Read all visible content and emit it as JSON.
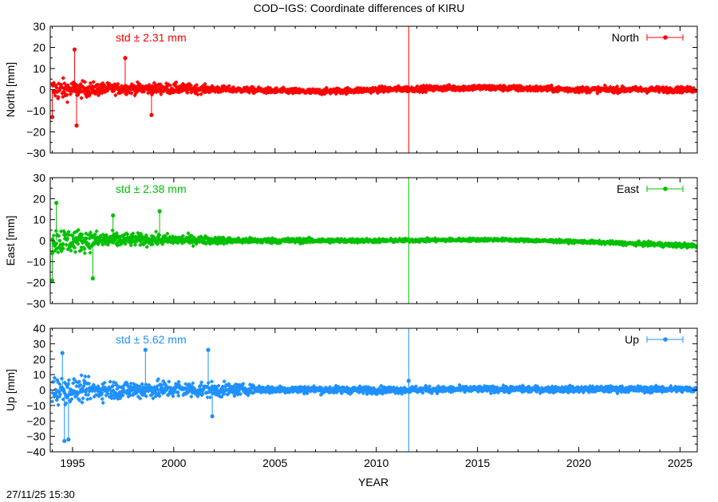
{
  "figure": {
    "title": "COD−IGS: Coordinate differences of KIRU",
    "timestamp": "27/11/25 15:30"
  },
  "chart_data": [
    {
      "type": "scatter",
      "component": "north",
      "series": [
        {
          "name": "North"
        }
      ],
      "ylabel": "North [mm]",
      "xlabel": "",
      "std_label": "std ± 2.31 mm",
      "std_mm": 2.31,
      "color": "#ff0000",
      "xlim": [
        1993.9,
        2025.85
      ],
      "ylim": [
        -30,
        30
      ],
      "yticks": [
        -30,
        -20,
        -10,
        0,
        10,
        20,
        30
      ],
      "xticks": [
        1995,
        2000,
        2005,
        2010,
        2015,
        2020,
        2025
      ],
      "show_xtick_labels": false,
      "grid": false,
      "legend": "top-right",
      "spike": {
        "x": 2011.6,
        "y_range": [
          -30,
          30
        ]
      },
      "envelope": [
        {
          "x": 1994.0,
          "lo": -12,
          "hi": 12
        },
        {
          "x": 1995.5,
          "lo": -8,
          "hi": 8
        },
        {
          "x": 1997.0,
          "lo": -5,
          "hi": 6
        },
        {
          "x": 2000.0,
          "lo": -5,
          "hi": 6
        },
        {
          "x": 2003.0,
          "lo": -3,
          "hi": 3
        },
        {
          "x": 2007.0,
          "lo": -4,
          "hi": 2
        },
        {
          "x": 2010.0,
          "lo": -3,
          "hi": 3
        },
        {
          "x": 2015.0,
          "lo": -2,
          "hi": 4
        },
        {
          "x": 2020.0,
          "lo": -3,
          "hi": 3
        },
        {
          "x": 2025.8,
          "lo": -3,
          "hi": 3
        }
      ],
      "outliers": [
        {
          "x": 1995.1,
          "y": 19
        },
        {
          "x": 1995.2,
          "y": -17
        },
        {
          "x": 1997.6,
          "y": 15
        },
        {
          "x": 1998.9,
          "y": -12
        },
        {
          "x": 1994.0,
          "y": -13
        }
      ]
    },
    {
      "type": "scatter",
      "component": "east",
      "series": [
        {
          "name": "East"
        }
      ],
      "ylabel": "East [mm]",
      "xlabel": "",
      "std_label": "std ± 2.38 mm",
      "std_mm": 2.38,
      "color": "#00c000",
      "xlim": [
        1993.9,
        2025.85
      ],
      "ylim": [
        -30,
        30
      ],
      "yticks": [
        -30,
        -20,
        -10,
        0,
        10,
        20,
        30
      ],
      "xticks": [
        1995,
        2000,
        2005,
        2010,
        2015,
        2020,
        2025
      ],
      "show_xtick_labels": false,
      "grid": false,
      "legend": "top-right",
      "spike": {
        "x": 2011.6,
        "y_range": [
          -30,
          30
        ]
      },
      "envelope": [
        {
          "x": 1994.0,
          "lo": -15,
          "hi": 15
        },
        {
          "x": 1996.0,
          "lo": -10,
          "hi": 10
        },
        {
          "x": 1998.0,
          "lo": -6,
          "hi": 7
        },
        {
          "x": 2000.0,
          "lo": -5,
          "hi": 6
        },
        {
          "x": 2003.0,
          "lo": -3,
          "hi": 3
        },
        {
          "x": 2010.0,
          "lo": -2,
          "hi": 2
        },
        {
          "x": 2016.0,
          "lo": -1,
          "hi": 2
        },
        {
          "x": 2020.0,
          "lo": -2,
          "hi": 1
        },
        {
          "x": 2025.8,
          "lo": -5,
          "hi": 0
        }
      ],
      "outliers": [
        {
          "x": 1994.2,
          "y": 18
        },
        {
          "x": 1994.0,
          "y": -19
        },
        {
          "x": 1996.0,
          "y": -18
        },
        {
          "x": 1999.3,
          "y": 14
        },
        {
          "x": 1997.0,
          "y": 12
        }
      ]
    },
    {
      "type": "scatter",
      "component": "up",
      "series": [
        {
          "name": "Up"
        }
      ],
      "ylabel": "Up [mm]",
      "xlabel": "YEAR",
      "std_label": "std ± 5.62 mm",
      "std_mm": 5.62,
      "color": "#1e90ff",
      "xlim": [
        1993.9,
        2025.85
      ],
      "ylim": [
        -40,
        40
      ],
      "yticks": [
        -40,
        -30,
        -20,
        -10,
        0,
        10,
        20,
        30,
        40
      ],
      "xticks": [
        1995,
        2000,
        2005,
        2010,
        2015,
        2020,
        2025
      ],
      "show_xtick_labels": true,
      "grid": false,
      "legend": "top-right",
      "spike": {
        "x": 2011.6,
        "y_range": [
          -40,
          40
        ]
      },
      "envelope": [
        {
          "x": 1994.0,
          "lo": -20,
          "hi": 20
        },
        {
          "x": 1996.0,
          "lo": -14,
          "hi": 14
        },
        {
          "x": 2000.0,
          "lo": -12,
          "hi": 13
        },
        {
          "x": 2002.5,
          "lo": -10,
          "hi": 10
        },
        {
          "x": 2004.0,
          "lo": -5,
          "hi": 6
        },
        {
          "x": 2010.0,
          "lo": -5,
          "hi": 5
        },
        {
          "x": 2015.0,
          "lo": -4,
          "hi": 5
        },
        {
          "x": 2020.0,
          "lo": -4,
          "hi": 5
        },
        {
          "x": 2025.8,
          "lo": -4,
          "hi": 5
        }
      ],
      "outliers": [
        {
          "x": 1994.5,
          "y": 24
        },
        {
          "x": 1994.6,
          "y": -33
        },
        {
          "x": 1994.8,
          "y": -32
        },
        {
          "x": 1998.6,
          "y": 26
        },
        {
          "x": 2001.7,
          "y": 26
        },
        {
          "x": 2001.9,
          "y": -17
        },
        {
          "x": 2011.6,
          "y": 6
        }
      ]
    }
  ]
}
